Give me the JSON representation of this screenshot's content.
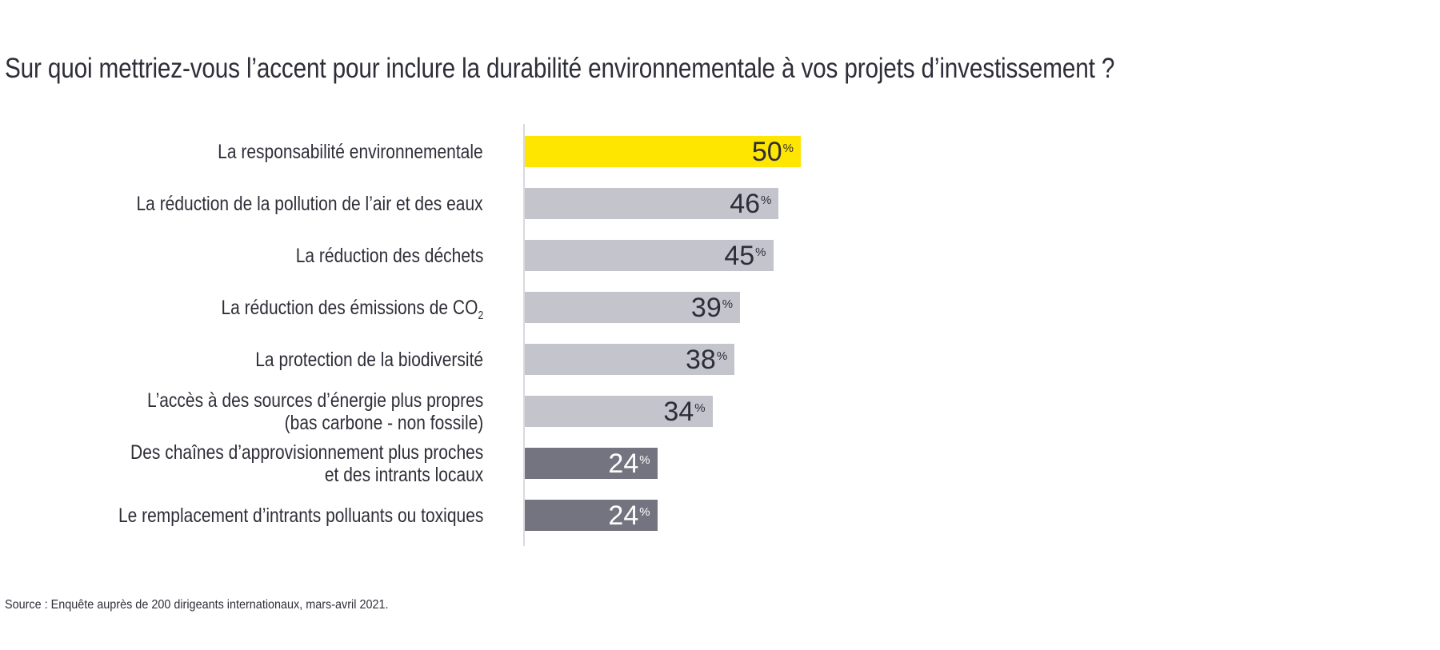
{
  "title": "Sur quoi mettriez-vous l’accent pour inclure la durabilité environnementale à vos projets d’investissement ?",
  "source": "Source : Enquête auprès de 200 dirigeants internationaux, mars-avril 2021.",
  "colors": {
    "highlight": "#FFE600",
    "light": "#C4C4CD",
    "dark": "#747480",
    "text": "#2E2E38",
    "value_on_dark": "#FFFFFF",
    "axis": "#D9D9DE",
    "background": "#FFFFFF"
  },
  "chart_data": {
    "type": "bar",
    "orientation": "horizontal",
    "unit": "%",
    "value_suffix": "%",
    "xlim": [
      0,
      52
    ],
    "grid": false,
    "legend": false,
    "title": "Sur quoi mettriez-vous l’accent pour inclure la durabilité environnementale à vos projets d’investissement ?",
    "categories": [
      "La responsabilité environnementale",
      "La réduction de la pollution de l’air et des eaux",
      "La réduction des déchets",
      "La réduction des émissions de CO₂",
      "La protection de la biodiversité",
      "L’accès à des sources d’énergie plus propres (bas carbone - non fossile)",
      "Des chaînes d’approvisionnement plus proches et des intrants locaux",
      "Le remplacement d’intrants polluants ou toxiques"
    ],
    "values": [
      50,
      46,
      45,
      39,
      38,
      34,
      24,
      24
    ],
    "bars": [
      {
        "label_lines": [
          "La responsabilité environnementale"
        ],
        "label_subscript": null,
        "value": 50,
        "style": "highlight"
      },
      {
        "label_lines": [
          "La réduction de la pollution de l’air et des eaux"
        ],
        "label_subscript": null,
        "value": 46,
        "style": "light"
      },
      {
        "label_lines": [
          "La réduction des déchets"
        ],
        "label_subscript": null,
        "value": 45,
        "style": "light"
      },
      {
        "label_lines": [
          "La réduction des émissions de CO"
        ],
        "label_subscript": "2",
        "value": 39,
        "style": "light"
      },
      {
        "label_lines": [
          "La protection de la biodiversité"
        ],
        "label_subscript": null,
        "value": 38,
        "style": "light"
      },
      {
        "label_lines": [
          "L’accès à des sources d’énergie plus propres",
          "(bas carbone - non fossile)"
        ],
        "label_subscript": null,
        "value": 34,
        "style": "light"
      },
      {
        "label_lines": [
          "Des chaînes d’approvisionnement plus proches",
          "et des intrants locaux"
        ],
        "label_subscript": null,
        "value": 24,
        "style": "dark"
      },
      {
        "label_lines": [
          "Le remplacement d’intrants polluants ou toxiques"
        ],
        "label_subscript": null,
        "value": 24,
        "style": "dark"
      }
    ]
  }
}
